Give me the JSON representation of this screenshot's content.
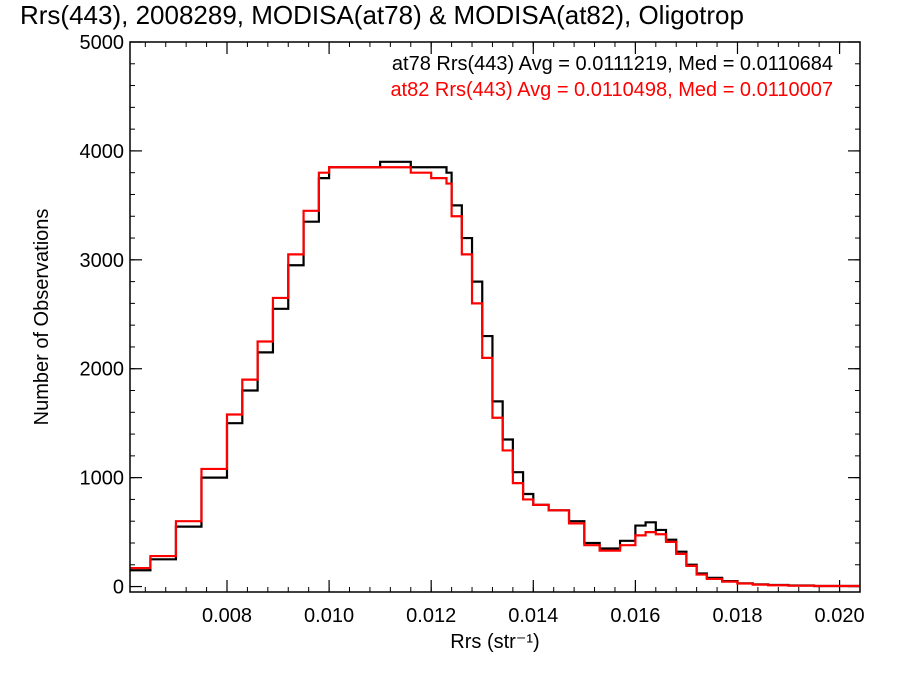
{
  "chart_data": {
    "type": "line",
    "title": "Rrs(443), 2008289, MODISA(at78) & MODISA(at82), Oligotrop",
    "xlabel": "Rrs (str⁻¹)",
    "ylabel": "Number of Observations",
    "xlim": [
      0.0061,
      0.0204
    ],
    "ylim": [
      -50,
      5000
    ],
    "x_ticks": [
      0.008,
      0.01,
      0.012,
      0.014,
      0.016,
      0.018,
      0.02
    ],
    "x_tick_labels": [
      "0.008",
      "0.010",
      "0.012",
      "0.014",
      "0.016",
      "0.018",
      "0.020"
    ],
    "y_ticks": [
      0,
      1000,
      2000,
      3000,
      4000,
      5000
    ],
    "y_tick_labels": [
      "0",
      "1000",
      "2000",
      "3000",
      "4000",
      "5000"
    ],
    "grid": false,
    "legend_position": "top-right",
    "annotations": [
      "at78 Rrs(443) Avg = 0.0111219, Med = 0.0110684",
      "at82 Rrs(443) Avg = 0.0110498, Med = 0.0110007"
    ],
    "colors": {
      "at78": "#000000",
      "at82": "#ff0000",
      "axes": "#000000"
    },
    "series": [
      {
        "color": "#000000",
        "x": [
          0.0061,
          0.0065,
          0.007,
          0.0075,
          0.008,
          0.0083,
          0.0086,
          0.0089,
          0.0092,
          0.0095,
          0.0098,
          0.01,
          0.0103,
          0.0106,
          0.011,
          0.0113,
          0.0116,
          0.012,
          0.0123,
          0.0124,
          0.0126,
          0.0128,
          0.013,
          0.0132,
          0.0134,
          0.0136,
          0.0138,
          0.014,
          0.0143,
          0.0147,
          0.015,
          0.0153,
          0.0157,
          0.016,
          0.0162,
          0.0164,
          0.0166,
          0.0168,
          0.017,
          0.0172,
          0.0174,
          0.0177,
          0.018,
          0.0183,
          0.0186,
          0.019,
          0.0195,
          0.02,
          0.0204
        ],
        "y": [
          150,
          250,
          550,
          1000,
          1500,
          1800,
          2150,
          2550,
          2950,
          3350,
          3750,
          3850,
          3850,
          3850,
          3900,
          3900,
          3850,
          3850,
          3800,
          3500,
          3200,
          2800,
          2300,
          1700,
          1350,
          1050,
          850,
          750,
          700,
          600,
          400,
          350,
          420,
          560,
          590,
          520,
          430,
          320,
          200,
          120,
          80,
          50,
          30,
          20,
          15,
          10,
          5,
          5,
          5
        ]
      },
      {
        "color": "#ff0000",
        "x": [
          0.0061,
          0.0065,
          0.007,
          0.0075,
          0.008,
          0.0083,
          0.0086,
          0.0089,
          0.0092,
          0.0095,
          0.0098,
          0.01,
          0.0103,
          0.0106,
          0.011,
          0.0113,
          0.0116,
          0.012,
          0.0123,
          0.0124,
          0.0126,
          0.0128,
          0.013,
          0.0132,
          0.0134,
          0.0136,
          0.0138,
          0.014,
          0.0143,
          0.0147,
          0.015,
          0.0153,
          0.0157,
          0.016,
          0.0162,
          0.0164,
          0.0166,
          0.0168,
          0.017,
          0.0172,
          0.0174,
          0.0177,
          0.018,
          0.0183,
          0.0186,
          0.019,
          0.0195,
          0.02,
          0.0204
        ],
        "y": [
          170,
          280,
          600,
          1080,
          1580,
          1900,
          2250,
          2650,
          3050,
          3450,
          3800,
          3850,
          3850,
          3850,
          3850,
          3850,
          3800,
          3750,
          3700,
          3400,
          3050,
          2600,
          2100,
          1550,
          1250,
          950,
          800,
          750,
          700,
          580,
          380,
          330,
          380,
          470,
          500,
          480,
          410,
          300,
          190,
          110,
          70,
          45,
          28,
          18,
          12,
          8,
          5,
          5,
          5
        ]
      }
    ]
  }
}
